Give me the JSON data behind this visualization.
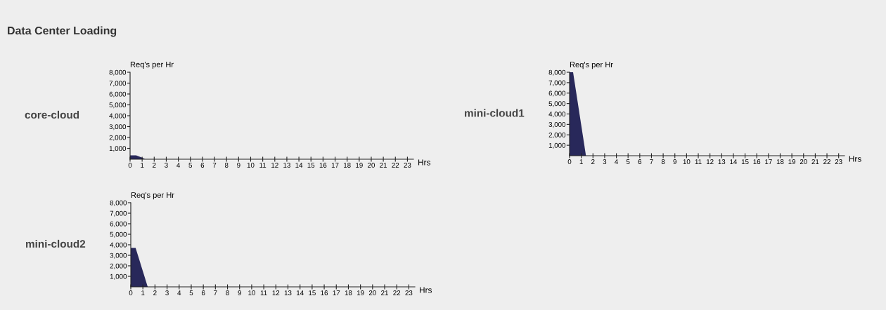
{
  "chart_data": [
    {
      "type": "area",
      "title": "core-cloud",
      "ylabel": "Req's per Hr",
      "xlabel": "Hrs",
      "annotations": [
        "Data Center Loading"
      ],
      "series": [
        {
          "color": "#28285a",
          "x": [
            0,
            0.5,
            1,
            1.25
          ],
          "values": [
            350,
            350,
            150,
            0
          ]
        }
      ],
      "xlim": [
        0,
        23.5
      ],
      "xticks": [
        0,
        1,
        2,
        3,
        4,
        5,
        6,
        7,
        8,
        9,
        10,
        11,
        12,
        13,
        14,
        15,
        16,
        17,
        18,
        19,
        20,
        21,
        22,
        23
      ],
      "ylim": [
        0,
        8000
      ],
      "yticks": [
        {
          "value": 1000,
          "label": "1,000"
        },
        {
          "value": 2000,
          "label": "2,000"
        },
        {
          "value": 3000,
          "label": "3,000"
        },
        {
          "value": 4000,
          "label": "4,000"
        },
        {
          "value": 5000,
          "label": "5,000"
        },
        {
          "value": 6000,
          "label": "6,000"
        },
        {
          "value": 7000,
          "label": "7,000"
        },
        {
          "value": 8000,
          "label": "8,000"
        }
      ],
      "grid": false,
      "legend": false
    },
    {
      "type": "area",
      "title": "mini-cloud1",
      "ylabel": "Req's per Hr",
      "xlabel": "Hrs",
      "series": [
        {
          "color": "#28285a",
          "x": [
            0,
            0.3,
            1.4
          ],
          "values": [
            8000,
            8000,
            0
          ]
        }
      ],
      "xlim": [
        0,
        23.5
      ],
      "xticks": [
        0,
        1,
        2,
        3,
        4,
        5,
        6,
        7,
        8,
        9,
        10,
        11,
        12,
        13,
        14,
        15,
        16,
        17,
        18,
        19,
        20,
        21,
        22,
        23
      ],
      "ylim": [
        0,
        8000
      ],
      "yticks": [
        {
          "value": 1000,
          "label": "1,000"
        },
        {
          "value": 2000,
          "label": "2,000"
        },
        {
          "value": 3000,
          "label": "3,000"
        },
        {
          "value": 4000,
          "label": "4,000"
        },
        {
          "value": 5000,
          "label": "5,000"
        },
        {
          "value": 6000,
          "label": "6,000"
        },
        {
          "value": 7000,
          "label": "7,000"
        },
        {
          "value": 8000,
          "label": "8,000"
        }
      ],
      "grid": false,
      "legend": false
    },
    {
      "type": "area",
      "title": "mini-cloud2",
      "ylabel": "Req's per Hr",
      "xlabel": "Hrs",
      "series": [
        {
          "color": "#28285a",
          "x": [
            0,
            0.4,
            1.4
          ],
          "values": [
            3700,
            3700,
            0
          ]
        }
      ],
      "xlim": [
        0,
        23.5
      ],
      "xticks": [
        0,
        1,
        2,
        3,
        4,
        5,
        6,
        7,
        8,
        9,
        10,
        11,
        12,
        13,
        14,
        15,
        16,
        17,
        18,
        19,
        20,
        21,
        22,
        23
      ],
      "ylim": [
        0,
        8000
      ],
      "yticks": [
        {
          "value": 1000,
          "label": "1,000"
        },
        {
          "value": 2000,
          "label": "2,000"
        },
        {
          "value": 3000,
          "label": "3,000"
        },
        {
          "value": 4000,
          "label": "4,000"
        },
        {
          "value": 5000,
          "label": "5,000"
        },
        {
          "value": 6000,
          "label": "6,000"
        },
        {
          "value": 7000,
          "label": "7,000"
        },
        {
          "value": 8000,
          "label": "8,000"
        }
      ],
      "grid": false,
      "legend": false
    }
  ]
}
